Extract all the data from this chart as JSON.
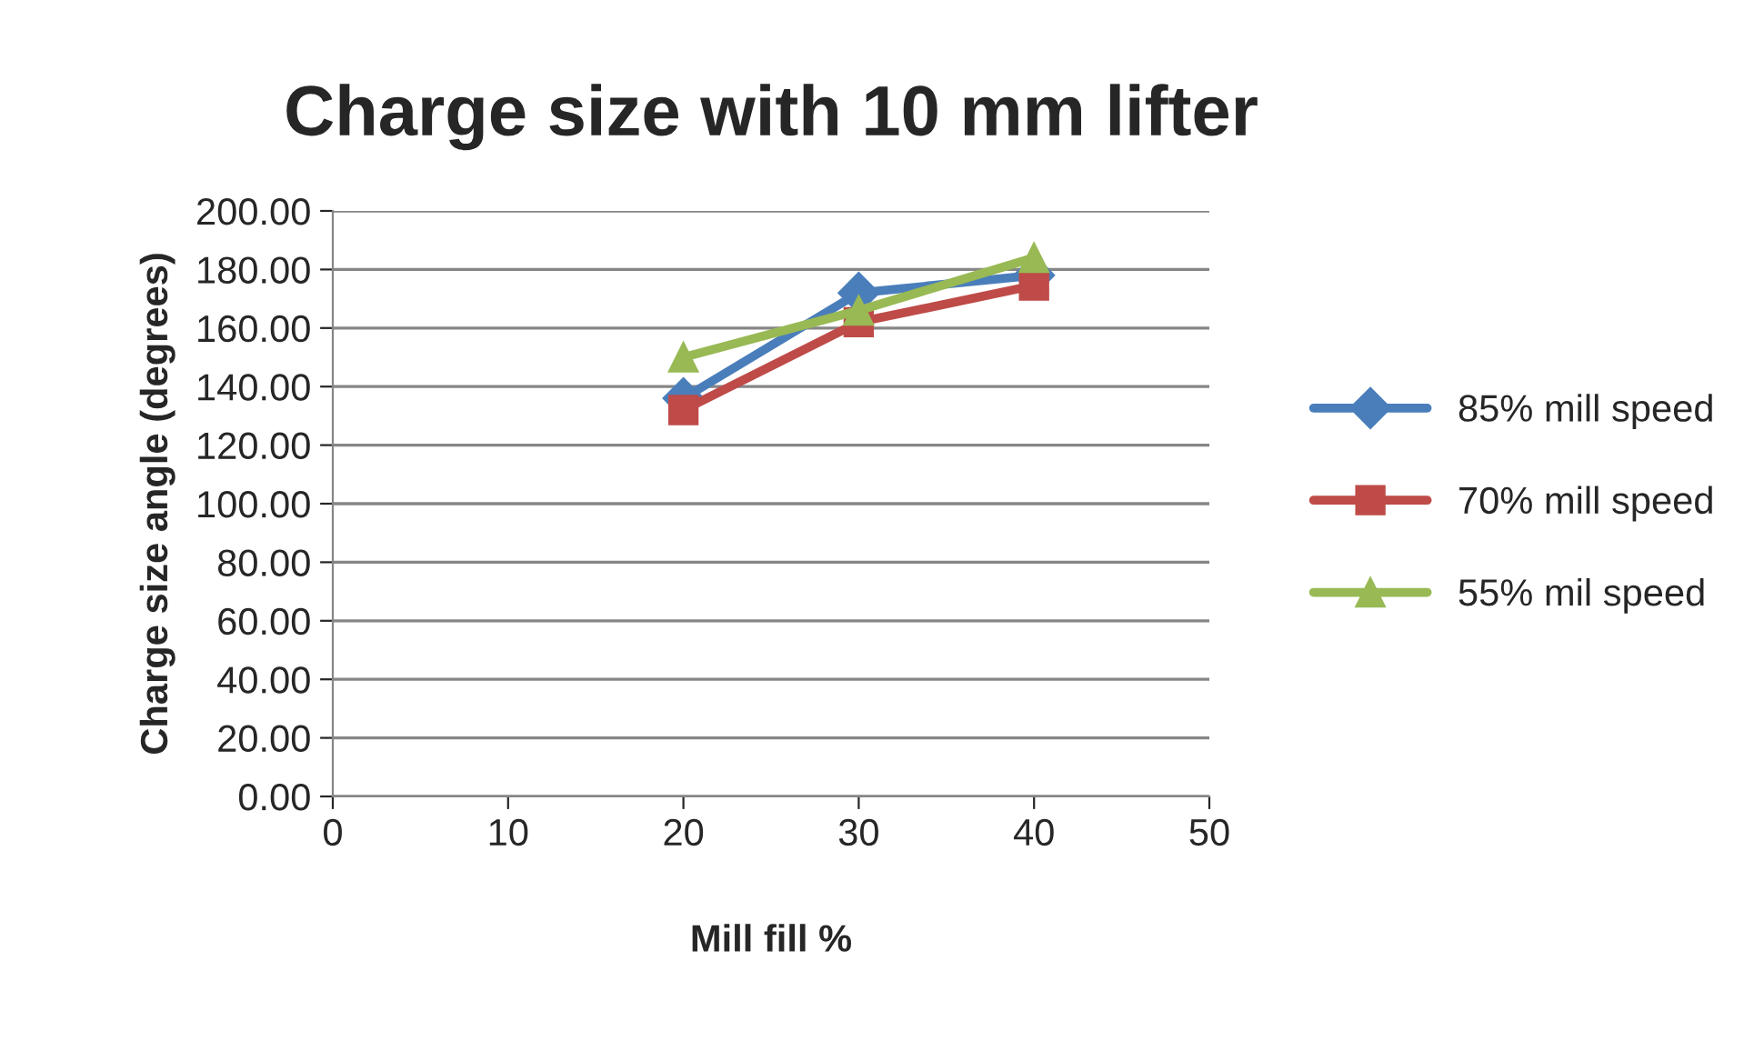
{
  "chart_data": {
    "type": "line",
    "title": "Charge size with 10 mm lifter",
    "xlabel": "Mill fill %",
    "ylabel": "Charge size angle (degrees)",
    "x": [
      20,
      30,
      40
    ],
    "series": [
      {
        "name": "85% mill speed",
        "color": "#4a7ebb",
        "values": [
          136,
          172,
          178
        ],
        "marker": "diamond"
      },
      {
        "name": "70% mill speed",
        "color": "#be4b48",
        "values": [
          132,
          162,
          174.5
        ],
        "marker": "square"
      },
      {
        "name": "55% mil speed",
        "color": "#98b954",
        "values": [
          150,
          166,
          184
        ],
        "marker": "triangle"
      }
    ],
    "xlim": [
      0,
      50
    ],
    "xticks": [
      0,
      10,
      20,
      30,
      40,
      50
    ],
    "ylim": [
      0,
      200
    ],
    "yticks": [
      {
        "value": 0,
        "label": "0.00"
      },
      {
        "value": 20,
        "label": "20.00"
      },
      {
        "value": 40,
        "label": "40.00"
      },
      {
        "value": 60,
        "label": "60.00"
      },
      {
        "value": 80,
        "label": "80.00"
      },
      {
        "value": 100,
        "label": "100.00"
      },
      {
        "value": 120,
        "label": "120.00"
      },
      {
        "value": 140,
        "label": "140.00"
      },
      {
        "value": 160,
        "label": "160.00"
      },
      {
        "value": 180,
        "label": "180.00"
      },
      {
        "value": 200,
        "label": "200.00"
      }
    ],
    "grid": "y",
    "legend": "right",
    "line_style": "solid"
  }
}
